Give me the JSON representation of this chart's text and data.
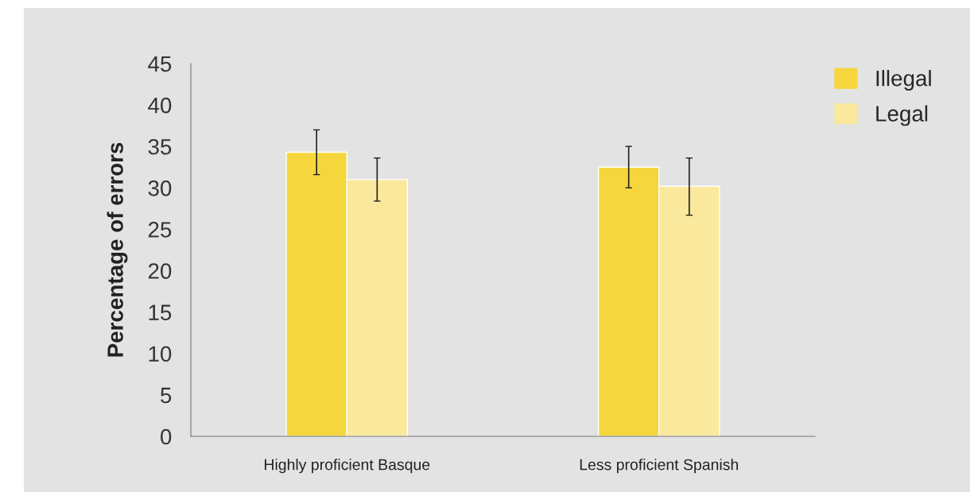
{
  "chart_data": {
    "type": "bar",
    "ylabel": "Percentage of errors",
    "categories": [
      "Highly proficient Basque",
      "Less proficient Spanish"
    ],
    "series": [
      {
        "name": "Illegal",
        "color": "#f5d63d",
        "values": [
          34.3,
          32.5
        ],
        "errors": [
          [
            31.6,
            37.0
          ],
          [
            30.0,
            35.0
          ]
        ]
      },
      {
        "name": "Legal",
        "color": "#fae99d",
        "values": [
          31.0,
          30.2
        ],
        "errors": [
          [
            28.4,
            33.6
          ],
          [
            26.7,
            33.6
          ]
        ]
      }
    ],
    "ylim": [
      0,
      45
    ],
    "yticks": [
      0,
      5,
      10,
      15,
      20,
      25,
      30,
      35,
      40,
      45
    ],
    "grid": false,
    "legend": "top right"
  }
}
